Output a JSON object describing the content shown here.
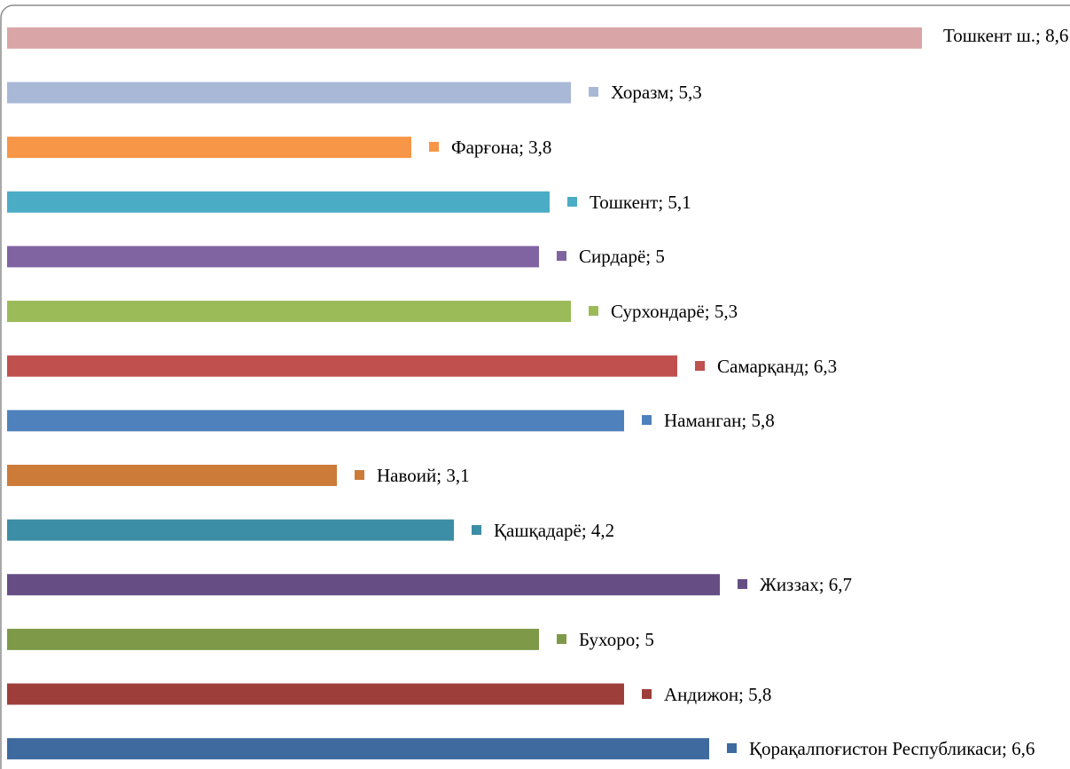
{
  "chart_data": {
    "type": "barh",
    "values": [
      8.6,
      5.3,
      3.8,
      5.1,
      5,
      5.3,
      6.3,
      5.8,
      3.1,
      4.2,
      6.7,
      5,
      5.8,
      6.6
    ],
    "value_labels": [
      "Тошкент ш.; 8,6",
      "Хоразм; 5,3",
      "Фарғона; 3,8",
      "Тошкент; 5,1",
      "Сирдарё; 5",
      "Сурхондарё; 5,3",
      "Самарқанд; 6,3",
      "Наманган; 5,8",
      "Навоий; 3,1",
      "Қашқадарё; 4,2",
      "Жиззах; 6,7",
      "Бухоро; 5",
      "Андижон; 5,8",
      "Қорақалпоғистон Республикаси; 6,6"
    ],
    "colors": [
      "#d9a5a7",
      "#a9b8d6",
      "#f79646",
      "#4bacc6",
      "#8064a2",
      "#9bbb59",
      "#c0504d",
      "#4f81bd",
      "#cc7b38",
      "#3b8ea5",
      "#664e84",
      "#7e9a48",
      "#9e3e3b",
      "#3e6aa0"
    ],
    "xlim": [
      0,
      10
    ]
  }
}
